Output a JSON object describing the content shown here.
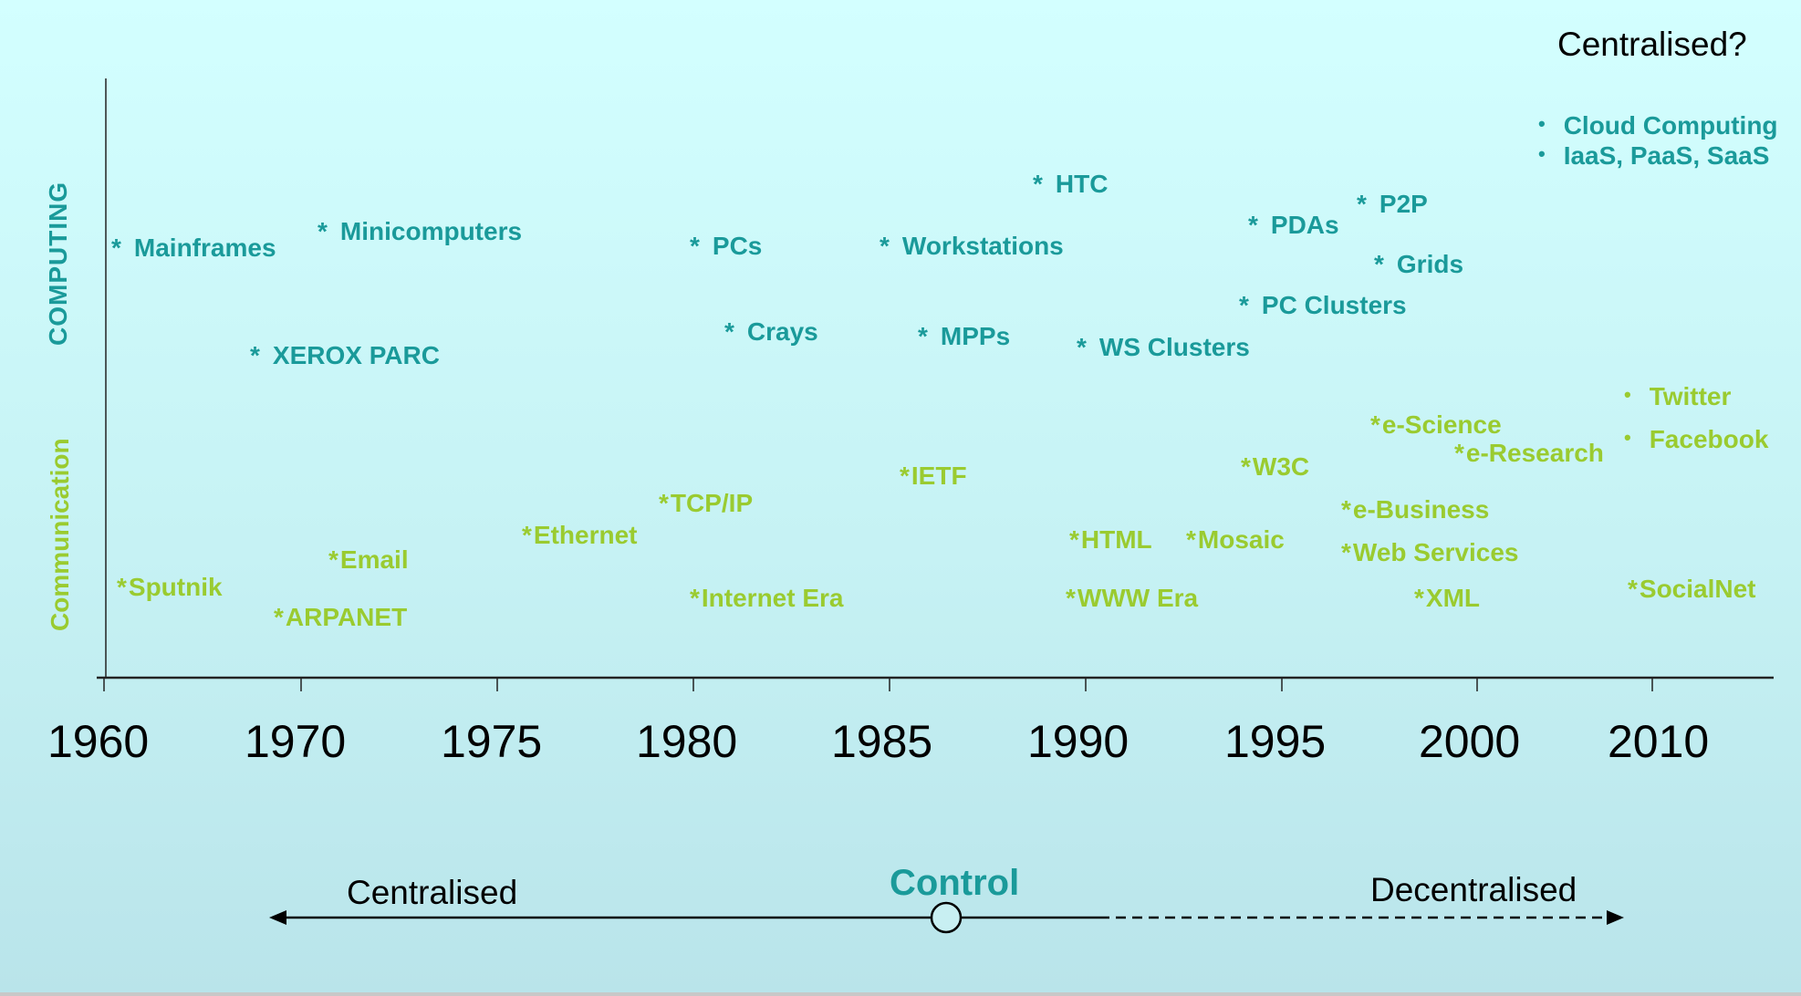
{
  "corner_title": "Centralised?",
  "axis_labels": {
    "computing": "COMPUTING",
    "communication": "Communication"
  },
  "years": [
    "1960",
    "1970",
    "1975",
    "1980",
    "1985",
    "1990",
    "1995",
    "2000",
    "2010"
  ],
  "computing_items": [
    {
      "text": "Mainframes"
    },
    {
      "text": "Minicomputers"
    },
    {
      "text": "PCs"
    },
    {
      "text": "Workstations"
    },
    {
      "text": "HTC"
    },
    {
      "text": "XEROX PARC"
    },
    {
      "text": "Crays"
    },
    {
      "text": "MPPs"
    },
    {
      "text": "WS Clusters"
    },
    {
      "text": "PDAs"
    },
    {
      "text": "P2P"
    },
    {
      "text": "Grids"
    },
    {
      "text": "PC Clusters"
    }
  ],
  "recent_computing": [
    "Cloud Computing",
    "IaaS, PaaS, SaaS"
  ],
  "communication_items": [
    {
      "text": "Sputnik"
    },
    {
      "text": "ARPANET"
    },
    {
      "text": "Email"
    },
    {
      "text": "Ethernet"
    },
    {
      "text": "TCP/IP"
    },
    {
      "text": "Internet Era"
    },
    {
      "text": "IETF"
    },
    {
      "text": "HTML"
    },
    {
      "text": "Mosaic"
    },
    {
      "text": "WWW Era"
    },
    {
      "text": "W3C"
    },
    {
      "text": "e-Science"
    },
    {
      "text": "e-Research"
    },
    {
      "text": "e-Business"
    },
    {
      "text": "Web Services"
    },
    {
      "text": "XML"
    },
    {
      "text": "SocialNet"
    }
  ],
  "recent_communication": [
    "Twitter",
    "Facebook"
  ],
  "control": {
    "title": "Control",
    "left_label": "Centralised",
    "right_label": "Decentralised"
  },
  "colors": {
    "computing": "#1a9a9a",
    "communication": "#9acb30",
    "background": "#cdf8fa"
  }
}
